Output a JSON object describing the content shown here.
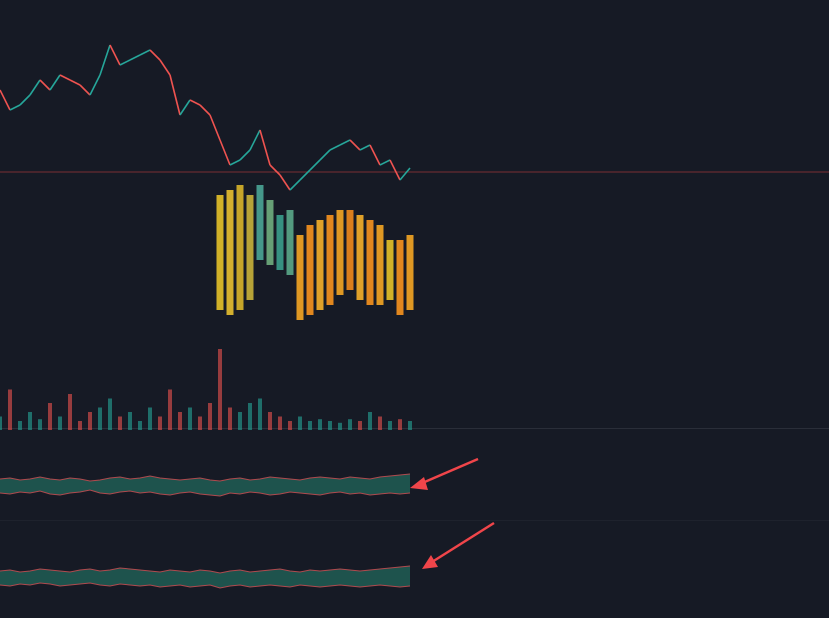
{
  "chart_data": [
    {
      "type": "price",
      "ylim": [
        0,
        340
      ],
      "up_color": "#26a69a",
      "down_color": "#ef5350",
      "reference_line": 168,
      "reference_color": "#7a2f33",
      "values": [
        250,
        230,
        235,
        245,
        260,
        250,
        265,
        260,
        255,
        245,
        265,
        295,
        275,
        280,
        285,
        290,
        280,
        265,
        225,
        240,
        235,
        225,
        200,
        175,
        180,
        190,
        210,
        175,
        165,
        150,
        160,
        170,
        180,
        190,
        195,
        200,
        190,
        195,
        175,
        180,
        160,
        172
      ]
    },
    {
      "type": "range-bar",
      "ylim": [
        0,
        340
      ],
      "start_index": 22,
      "top": [
        145,
        150,
        155,
        145,
        155,
        140,
        125,
        130,
        105,
        115,
        120,
        125,
        130,
        130,
        125,
        120,
        115,
        100,
        100,
        105
      ],
      "bottom": [
        30,
        25,
        30,
        40,
        80,
        75,
        70,
        65,
        20,
        25,
        30,
        35,
        45,
        50,
        40,
        35,
        35,
        40,
        25,
        30
      ],
      "colors": [
        "#e6c229",
        "#e8c030",
        "#d9b52a",
        "#c9b23a",
        "#4aa596",
        "#6fae7e",
        "#3a9e8c",
        "#5aa88a",
        "#f5a623",
        "#f7931e",
        "#f6b02a",
        "#f7931e",
        "#f5a623",
        "#f08a1c",
        "#f6b02a",
        "#f7931e",
        "#f5a623",
        "#e6c229",
        "#f7931e",
        "#f5a623"
      ]
    },
    {
      "type": "volume",
      "ylim": [
        0,
        100
      ],
      "values": [
        15,
        45,
        10,
        20,
        12,
        30,
        15,
        40,
        10,
        20,
        25,
        35,
        15,
        20,
        10,
        25,
        15,
        45,
        20,
        25,
        15,
        30,
        90,
        25,
        20,
        30,
        35,
        20,
        15,
        10,
        15,
        10,
        12,
        10,
        8,
        12,
        10,
        20,
        15,
        10,
        12,
        10
      ]
    },
    {
      "type": "band",
      "ylim": [
        0,
        60
      ],
      "fill": "#1f5a52",
      "edge_color": "#b04a4e",
      "upper": [
        36,
        37,
        35,
        36,
        38,
        36,
        35,
        37,
        36,
        34,
        35,
        37,
        38,
        36,
        37,
        39,
        37,
        36,
        35,
        36,
        37,
        35,
        34,
        36,
        37,
        35,
        36,
        38,
        37,
        36,
        35,
        37,
        38,
        37,
        36,
        38,
        37,
        36,
        38,
        39,
        40,
        41
      ],
      "lower": [
        22,
        21,
        23,
        22,
        24,
        21,
        20,
        22,
        23,
        25,
        22,
        21,
        23,
        24,
        22,
        23,
        21,
        20,
        22,
        23,
        21,
        20,
        19,
        22,
        21,
        23,
        22,
        20,
        21,
        23,
        22,
        21,
        20,
        22,
        23,
        21,
        22,
        20,
        21,
        22,
        21,
        22
      ]
    },
    {
      "type": "band",
      "ylim": [
        0,
        60
      ],
      "fill": "#1f5a52",
      "edge_color": "#b04a4e",
      "upper": [
        32,
        33,
        31,
        32,
        34,
        33,
        32,
        31,
        33,
        34,
        32,
        33,
        35,
        34,
        33,
        32,
        31,
        33,
        32,
        31,
        33,
        32,
        30,
        32,
        33,
        31,
        32,
        33,
        34,
        32,
        31,
        33,
        32,
        33,
        34,
        33,
        32,
        33,
        34,
        35,
        36,
        37
      ],
      "lower": [
        18,
        17,
        19,
        18,
        20,
        19,
        17,
        18,
        19,
        20,
        18,
        17,
        19,
        18,
        17,
        18,
        16,
        17,
        18,
        16,
        17,
        18,
        15,
        17,
        18,
        16,
        17,
        18,
        17,
        16,
        18,
        17,
        16,
        17,
        18,
        17,
        16,
        17,
        18,
        17,
        16,
        17
      ]
    }
  ]
}
